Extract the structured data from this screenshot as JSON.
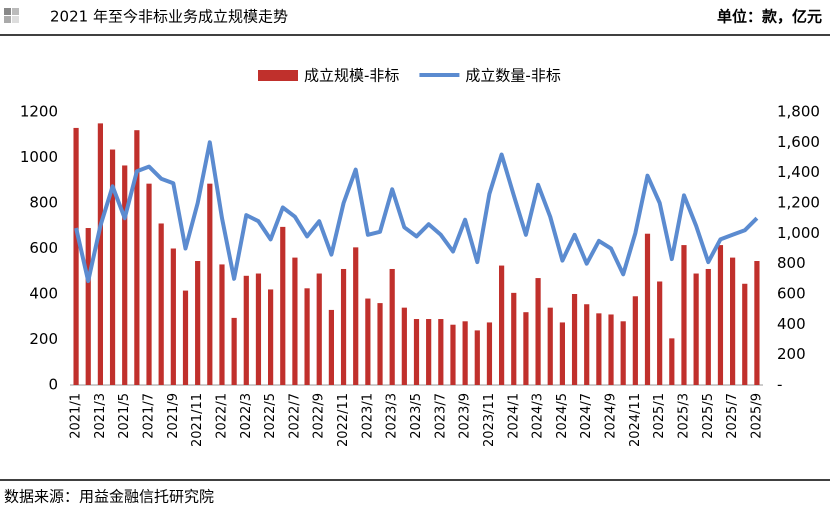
{
  "header": {
    "title": "2021 年至今非标业务成立规模走势",
    "unit": "单位：款，亿元"
  },
  "footer": {
    "source": "数据来源：用益金融信托研究院"
  },
  "chart_data": {
    "type": "bar-line",
    "categories": [
      "2021/1",
      null,
      "2021/3",
      null,
      "2021/5",
      null,
      "2021/7",
      null,
      "2021/9",
      null,
      "2021/11",
      null,
      "2022/1",
      null,
      "2022/3",
      null,
      "2022/5",
      null,
      "2022/7",
      null,
      "2022/9",
      null,
      "2022/11",
      null,
      "2023/1",
      null,
      "2023/3",
      null,
      "2023/5",
      null,
      "2023/7",
      null,
      "2023/9",
      null,
      "2023/11",
      null,
      "2024/1",
      null,
      "2024/3",
      null,
      "2024/5",
      null,
      "2024/7",
      null,
      "2024/9",
      null,
      "2024/11",
      null,
      "2025/1",
      null,
      "2025/3",
      null,
      "2025/5",
      null,
      "2025/7",
      null,
      "2025/9"
    ],
    "series": [
      {
        "name": "成立规模-非标",
        "type": "bar",
        "color": "#c0302c",
        "values": [
          1130,
          690,
          1150,
          1035,
          965,
          1120,
          885,
          710,
          600,
          415,
          545,
          885,
          530,
          295,
          480,
          490,
          420,
          695,
          560,
          425,
          490,
          330,
          510,
          605,
          380,
          360,
          510,
          340,
          290,
          290,
          290,
          265,
          280,
          240,
          275,
          525,
          405,
          320,
          470,
          340,
          275,
          400,
          355,
          315,
          310,
          280,
          390,
          665,
          455,
          205,
          615,
          490,
          510,
          615,
          560,
          445,
          545
        ]
      },
      {
        "name": "成立数量-非标",
        "type": "line",
        "axis": "y2",
        "color": "#5b8bd0",
        "values": [
          1035,
          685,
          1050,
          1310,
          1100,
          1410,
          1440,
          1360,
          1330,
          900,
          1200,
          1600,
          1100,
          700,
          1120,
          1080,
          960,
          1170,
          1110,
          980,
          1080,
          860,
          1200,
          1420,
          990,
          1010,
          1290,
          1040,
          980,
          1060,
          990,
          880,
          1090,
          810,
          1260,
          1520,
          1250,
          990,
          1320,
          1110,
          820,
          990,
          800,
          950,
          900,
          730,
          1000,
          1380,
          1200,
          830,
          1250,
          1050,
          810,
          960,
          990,
          1020,
          1100
        ]
      }
    ],
    "ylim": [
      0,
      1200
    ],
    "yticks": [
      0,
      200,
      400,
      600,
      800,
      1000,
      1200
    ],
    "y2lim": [
      0,
      1800
    ],
    "y2ticks": [
      {
        "value": 0,
        "label": "-"
      },
      200,
      400,
      600,
      800,
      {
        "value": 1000,
        "label": "1,000"
      },
      {
        "value": 1200,
        "label": "1,200"
      },
      {
        "value": 1400,
        "label": "1,400"
      },
      {
        "value": 1600,
        "label": "1,600"
      },
      {
        "value": 1800,
        "label": "1,800"
      }
    ],
    "legend": "top"
  }
}
